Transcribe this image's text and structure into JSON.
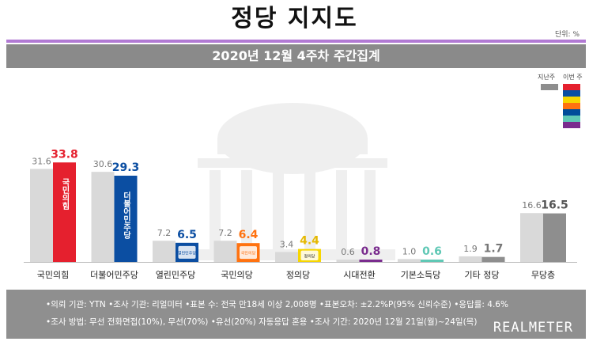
{
  "header": {
    "title": "정당 지지도",
    "unit": "단위: %",
    "subtitle": "2020년 12월 4주차 주간집계"
  },
  "legend": {
    "prev_label": "지난주",
    "curr_label": "이번 주",
    "curr_colors": [
      "#e5202e",
      "#0b4ea2",
      "#f7d600",
      "#ff7210",
      "#004c9a",
      "#5fc8b5",
      "#7a2c8e"
    ]
  },
  "chart_data": {
    "type": "bar",
    "title": "정당 지지도",
    "categories": [
      "국민의힘",
      "더불어민주당",
      "열린민주당",
      "국민의당",
      "정의당",
      "시대전환",
      "기본소득당",
      "기타 정당",
      "무당층"
    ],
    "series": [
      {
        "name": "지난주",
        "values": [
          31.6,
          30.6,
          7.2,
          7.2,
          3.4,
          0.6,
          1.0,
          1.9,
          16.6
        ]
      },
      {
        "name": "이번 주",
        "values": [
          33.8,
          29.3,
          6.5,
          6.4,
          4.4,
          0.8,
          0.6,
          1.7,
          16.5
        ]
      }
    ],
    "colors": [
      "#e5202e",
      "#0b4ea2",
      "#0b4ea2",
      "#ff7210",
      "#f7d600",
      "#7a2c8e",
      "#5fc8b5",
      "#8e8e8e",
      "#8e8e8e"
    ],
    "value_label_colors": [
      "#e5202e",
      "#0b4ea2",
      "#0b4ea2",
      "#ff7210",
      "#e5b800",
      "#7a2c8e",
      "#5fc8b5",
      "#777777",
      "#555555"
    ],
    "bar_logos": [
      "국민의힘",
      "더불어민주당",
      "열린민주당",
      "국민의당",
      "정의당",
      "",
      "",
      "",
      ""
    ],
    "prev_color": "#d9d9d9",
    "ylim": [
      0,
      40
    ]
  },
  "footer": {
    "line1": "•의뢰 기관: YTN  •조사 기관: 리얼미터  •표본 수: 전국 만18세 이상 2,008명  •표본오차: ±2.2%P(95% 신뢰수준)  •응답률: 4.6%",
    "line2": "•조사 방법: 무선 전화면접(10%), 무선(70%)  •유선(20%) 자동응답 혼용  •조사 기간: 2020년 12월 21일(월)~24일(목)",
    "brand": "REALMETER"
  }
}
